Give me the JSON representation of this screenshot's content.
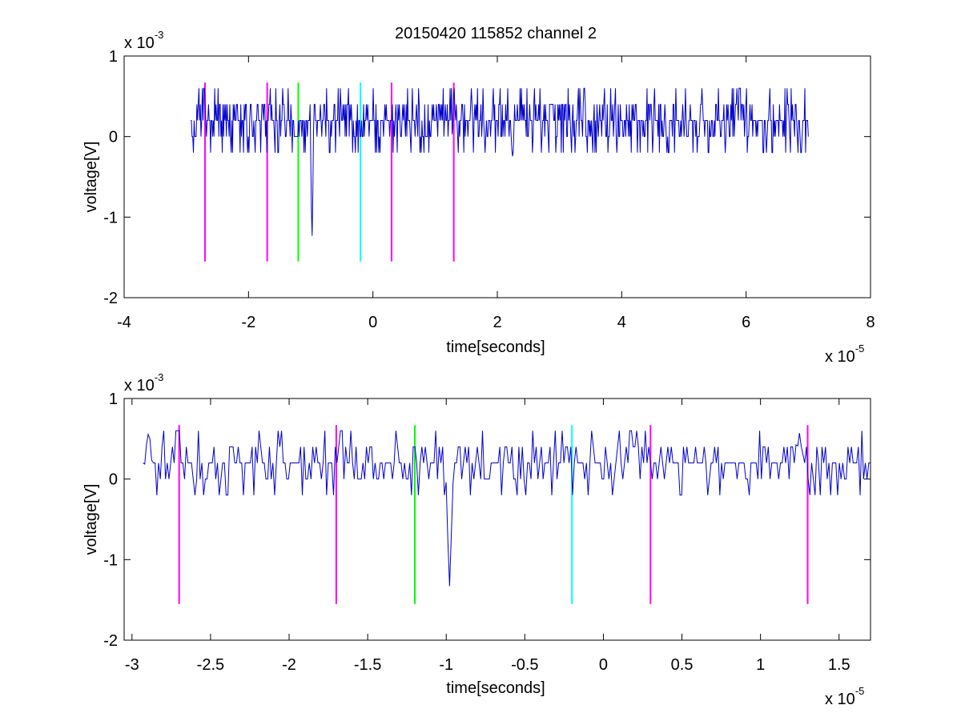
{
  "figure_title": "20150420 115852 channel 2",
  "chart_data": [
    {
      "type": "line",
      "title": "20150420 115852 channel 2",
      "xlabel": "time[seconds]",
      "ylabel": "voltage[V]",
      "x_exponent_label": "x 10",
      "x_exponent": "-5",
      "y_exponent_label": "x 10",
      "y_exponent": "-3",
      "xlim": [
        -4e-05,
        8e-05
      ],
      "ylim": [
        -0.002,
        0.001
      ],
      "xticks": [
        -4e-05,
        -2e-05,
        0,
        2e-05,
        4e-05,
        6e-05,
        8e-05
      ],
      "xtick_labels": [
        "-4",
        "-2",
        "0",
        "2",
        "4",
        "6",
        "8"
      ],
      "yticks": [
        -0.002,
        -0.001,
        0,
        0.001
      ],
      "ytick_labels": [
        "-2",
        "-1",
        "0",
        "1"
      ],
      "grid": false,
      "trace": {
        "color": "#0000cc",
        "x_start": -2.93e-05,
        "x_end": 7e-05,
        "baseline": 0.0002,
        "levels": [
          0.0006,
          0.0004,
          0.0002,
          0,
          -0.0002
        ],
        "spikes": [
          {
            "x": -9.8e-06,
            "y": -0.0014
          },
          {
            "x": 1.3e-05,
            "y": 0.0006
          },
          {
            "x": 2.25e-05,
            "y": -0.0004
          }
        ]
      },
      "markers": [
        {
          "x": -2.7e-05,
          "color": "#ff00ff"
        },
        {
          "x": -1.7e-05,
          "color": "#ff00ff"
        },
        {
          "x": -1.2e-05,
          "color": "#00ff00"
        },
        {
          "x": -2e-06,
          "color": "#00ffff"
        },
        {
          "x": 3e-06,
          "color": "#ff00ff"
        },
        {
          "x": 1.3e-05,
          "color": "#ff00ff"
        }
      ],
      "marker_y_range": [
        -0.00155,
        0.00067
      ]
    },
    {
      "type": "line",
      "title": "",
      "xlabel": "time[seconds]",
      "ylabel": "voltage[V]",
      "x_exponent_label": "x 10",
      "x_exponent": "-5",
      "y_exponent_label": "x 10",
      "y_exponent": "-3",
      "xlim": [
        -3.05e-05,
        1.7e-05
      ],
      "ylim": [
        -0.002,
        0.001
      ],
      "xticks": [
        -3e-05,
        -2.5e-05,
        -2e-05,
        -1.5e-05,
        -1e-05,
        -5e-06,
        0,
        5e-06,
        1e-05,
        1.5e-05
      ],
      "xtick_labels": [
        "-3",
        "-2.5",
        "-2",
        "-1.5",
        "-1",
        "-0.5",
        "0",
        "0.5",
        "1",
        "1.5"
      ],
      "yticks": [
        -0.002,
        -0.001,
        0,
        0.001
      ],
      "ytick_labels": [
        "-2",
        "-1",
        "0",
        "1"
      ],
      "grid": false,
      "trace": {
        "color": "#0000cc",
        "x_start": -2.93e-05,
        "x_end": 1.7e-05,
        "baseline": 0.0002,
        "levels": [
          0.0006,
          0.0004,
          0.0002,
          0,
          -0.0002
        ],
        "spikes": [
          {
            "x": -9.8e-06,
            "y": -0.0014
          },
          {
            "x": -2.9e-05,
            "y": 0.0006
          },
          {
            "x": 1.25e-05,
            "y": 0.0006
          }
        ]
      },
      "markers": [
        {
          "x": -2.7e-05,
          "color": "#ff00ff"
        },
        {
          "x": -1.7e-05,
          "color": "#ff00ff"
        },
        {
          "x": -1.2e-05,
          "color": "#00ff00"
        },
        {
          "x": -2e-06,
          "color": "#00ffff"
        },
        {
          "x": 3e-06,
          "color": "#ff00ff"
        },
        {
          "x": 1.3e-05,
          "color": "#ff00ff"
        }
      ],
      "marker_y_range": [
        -0.00155,
        0.00067
      ]
    }
  ]
}
